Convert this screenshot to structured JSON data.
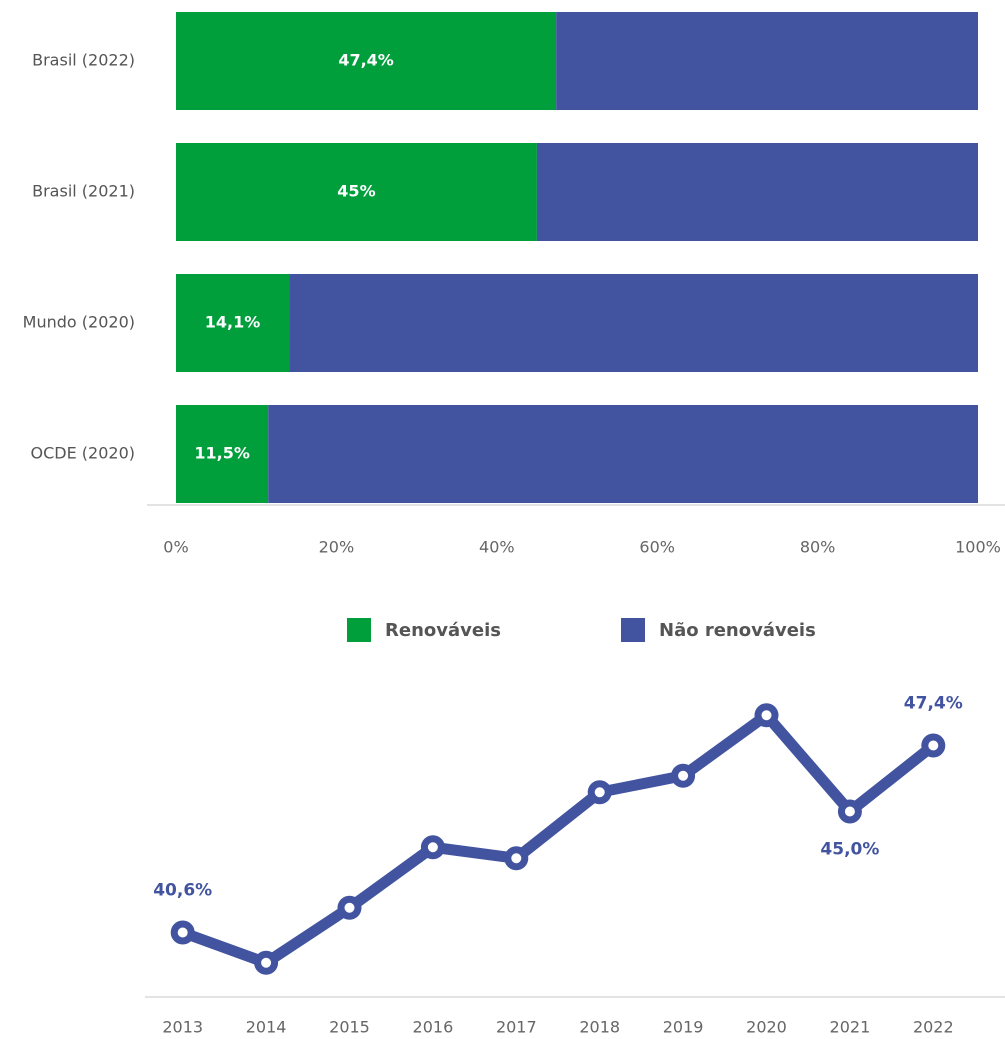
{
  "chart_data": [
    {
      "type": "stacked_bar_horizontal",
      "categories": [
        "Brasil (2022)",
        "Brasil (2021)",
        "Mundo (2020)",
        "OCDE (2020)"
      ],
      "series": [
        {
          "name": "Renováveis",
          "color": "#009f3c",
          "values": [
            47.4,
            45,
            14.1,
            11.5
          ],
          "value_labels": [
            "47,4%",
            "45%",
            "14,1%",
            "11,5%"
          ]
        },
        {
          "name": "Não renováveis",
          "color": "#4254a0",
          "values": [
            52.6,
            55,
            85.9,
            88.5
          ]
        }
      ],
      "xlim": [
        0,
        100
      ],
      "xticks": [
        {
          "value": 0,
          "label": "0%"
        },
        {
          "value": 20,
          "label": "20%"
        },
        {
          "value": 40,
          "label": "40%"
        },
        {
          "value": 60,
          "label": "60%"
        },
        {
          "value": 80,
          "label": "80%"
        },
        {
          "value": 100,
          "label": "100%"
        }
      ],
      "legend": "bottom"
    },
    {
      "type": "line",
      "categories": [
        "2013",
        "2014",
        "2015",
        "2016",
        "2017",
        "2018",
        "2019",
        "2020",
        "2021",
        "2022"
      ],
      "values": [
        40.6,
        39.5,
        41.5,
        43.7,
        43.3,
        45.7,
        46.3,
        48.5,
        45.0,
        47.4
      ],
      "value_labels": [
        "40,6%",
        null,
        null,
        null,
        null,
        null,
        null,
        null,
        "45,0%",
        "47,4%"
      ],
      "color": "#4254a0",
      "ylim": [
        38,
        50
      ]
    }
  ]
}
